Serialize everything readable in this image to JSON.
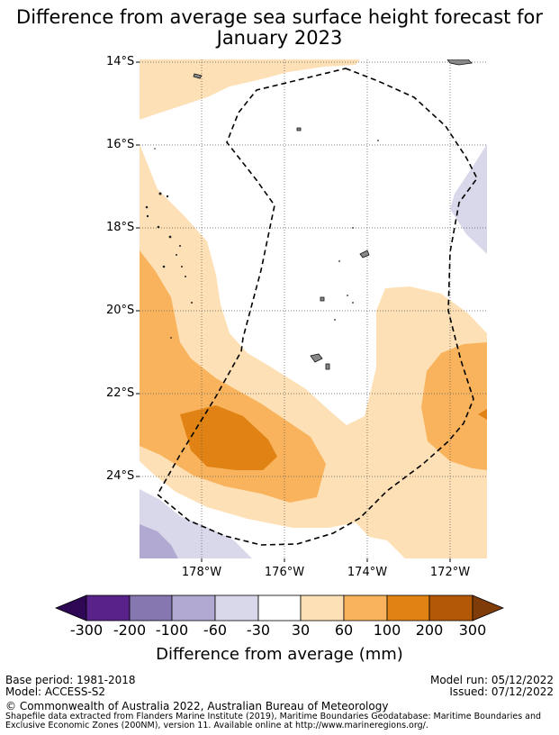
{
  "title": {
    "line1": "Difference from average sea surface height forecast for",
    "line2": "January 2023"
  },
  "map": {
    "lat_labels": [
      "14°S",
      "16°S",
      "18°S",
      "20°S",
      "22°S",
      "24°S"
    ],
    "lon_labels": [
      "178°W",
      "176°W",
      "174°W",
      "172°W"
    ]
  },
  "colorbar": {
    "ticks": [
      "-300",
      "-200",
      "-100",
      "-60",
      "-30",
      "30",
      "60",
      "100",
      "200",
      "300"
    ],
    "colors": [
      "#2e0854",
      "#58228a",
      "#8677b0",
      "#b1a9d2",
      "#d8d8ea",
      "#ffffff",
      "#fde0b5",
      "#f9b35c",
      "#e08214",
      "#b35806",
      "#7f3b08"
    ],
    "label": "Difference from average (mm)"
  },
  "footer": {
    "base_period": "Base period: 1981-2018",
    "model": "Model: ACCESS-S2",
    "model_run": "Model run: 05/12/2022",
    "issued": "Issued: 07/12/2022",
    "copyright": "© Commonwealth of Australia 2022, Australian Bureau of Meteorology",
    "shapefile_line1": "Shapefile data extracted from Flanders Marine Institute (2019), Maritime Boundaries Geodatabase: Maritime Boundaries and",
    "shapefile_line2": "Exclusive Economic Zones (200NM), version 11. Available online at http://www.marineregions.org/."
  }
}
